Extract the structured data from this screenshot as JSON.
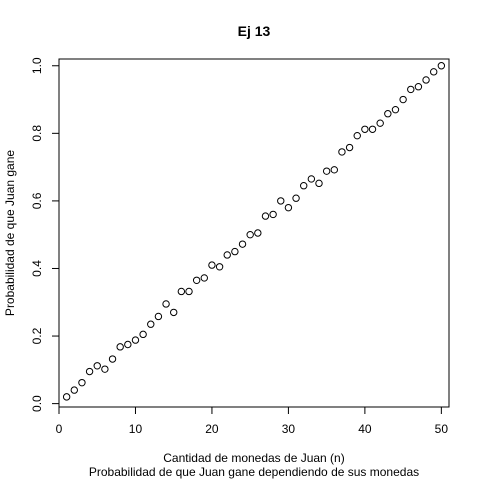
{
  "chart_data": {
    "type": "scatter",
    "title": "Ej 13",
    "xlabel": "Cantidad de monedas de Juan (n)",
    "subtitle": "Probabilidad de que Juan gane dependiendo de sus monedas",
    "ylabel": "Probabilidad de que Juan gane",
    "xlim": [
      0,
      51
    ],
    "ylim": [
      -0.01,
      1.02
    ],
    "xticks": [
      0,
      10,
      20,
      30,
      40,
      50
    ],
    "yticks": [
      0.0,
      0.2,
      0.4,
      0.6,
      0.8,
      1.0
    ],
    "xtick_labels": [
      "0",
      "10",
      "20",
      "30",
      "40",
      "50"
    ],
    "ytick_labels": [
      "0.0",
      "0.2",
      "0.4",
      "0.6",
      "0.8",
      "1.0"
    ],
    "grid": false,
    "marker": "open-circle",
    "points": [
      [
        1,
        0.02
      ],
      [
        2,
        0.04
      ],
      [
        3,
        0.062
      ],
      [
        4,
        0.095
      ],
      [
        5,
        0.112
      ],
      [
        6,
        0.102
      ],
      [
        7,
        0.132
      ],
      [
        8,
        0.168
      ],
      [
        9,
        0.175
      ],
      [
        10,
        0.188
      ],
      [
        11,
        0.205
      ],
      [
        12,
        0.235
      ],
      [
        13,
        0.258
      ],
      [
        14,
        0.295
      ],
      [
        15,
        0.27
      ],
      [
        16,
        0.332
      ],
      [
        17,
        0.332
      ],
      [
        18,
        0.365
      ],
      [
        19,
        0.372
      ],
      [
        20,
        0.41
      ],
      [
        21,
        0.405
      ],
      [
        22,
        0.44
      ],
      [
        23,
        0.45
      ],
      [
        24,
        0.472
      ],
      [
        25,
        0.5
      ],
      [
        26,
        0.505
      ],
      [
        27,
        0.555
      ],
      [
        28,
        0.56
      ],
      [
        29,
        0.6
      ],
      [
        30,
        0.58
      ],
      [
        31,
        0.608
      ],
      [
        32,
        0.645
      ],
      [
        33,
        0.665
      ],
      [
        34,
        0.652
      ],
      [
        35,
        0.688
      ],
      [
        36,
        0.692
      ],
      [
        37,
        0.745
      ],
      [
        38,
        0.758
      ],
      [
        39,
        0.793
      ],
      [
        40,
        0.812
      ],
      [
        41,
        0.812
      ],
      [
        42,
        0.83
      ],
      [
        43,
        0.858
      ],
      [
        44,
        0.87
      ],
      [
        45,
        0.9
      ],
      [
        46,
        0.93
      ],
      [
        47,
        0.938
      ],
      [
        48,
        0.958
      ],
      [
        49,
        0.982
      ],
      [
        50,
        1.0
      ]
    ]
  }
}
